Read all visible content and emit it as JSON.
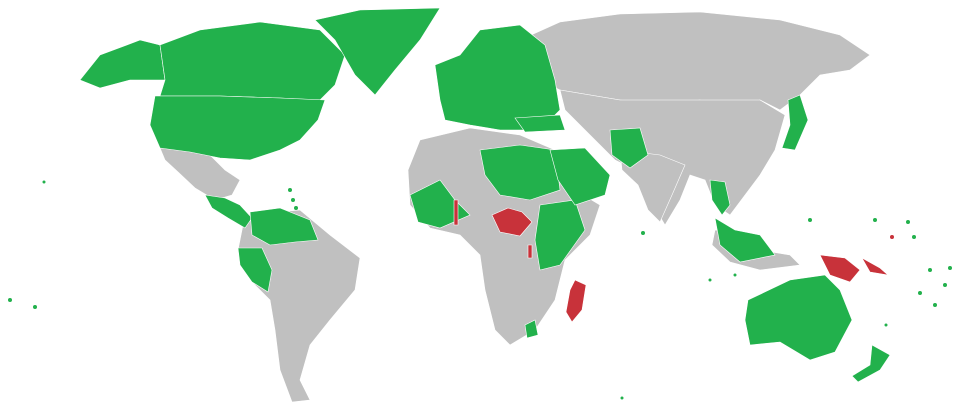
{
  "map": {
    "projection": "world",
    "colors": {
      "green": "#22b14c",
      "red": "#c8323a",
      "gray": "#c0c0c0",
      "background": "#ffffff"
    }
  }
}
